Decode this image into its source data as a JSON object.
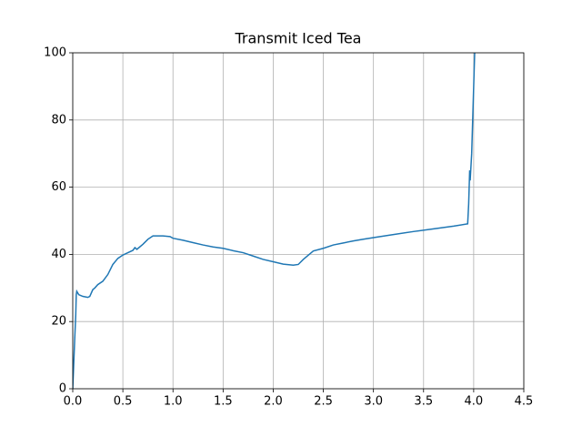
{
  "chart_data": {
    "type": "line",
    "title": "Transmit Iced Tea",
    "series": [
      {
        "name": null,
        "color": "#1f77b4",
        "x": [
          0,
          0.02,
          0.03,
          0.035,
          0.04,
          0.06,
          0.1,
          0.15,
          0.17,
          0.2,
          0.22,
          0.25,
          0.3,
          0.35,
          0.4,
          0.45,
          0.5,
          0.55,
          0.6,
          0.62,
          0.64,
          0.7,
          0.75,
          0.8,
          0.9,
          0.97,
          1.0,
          1.1,
          1.2,
          1.3,
          1.4,
          1.5,
          1.6,
          1.7,
          1.8,
          1.9,
          2.0,
          2.1,
          2.2,
          2.25,
          2.3,
          2.4,
          2.5,
          2.6,
          2.7,
          2.8,
          2.9,
          3.0,
          3.2,
          3.4,
          3.6,
          3.8,
          3.94,
          3.95,
          3.96,
          3.965,
          3.98,
          4.0,
          4.01
        ],
        "values": [
          0,
          15,
          22,
          28,
          29,
          28,
          27.5,
          27.2,
          27.5,
          29.5,
          30,
          31,
          32,
          34,
          37,
          38.8,
          39.8,
          40.5,
          41.2,
          42,
          41.5,
          43,
          44.5,
          45.5,
          45.5,
          45.3,
          44.8,
          44.2,
          43.5,
          42.8,
          42.2,
          41.8,
          41.1,
          40.5,
          39.5,
          38.5,
          37.8,
          37.1,
          36.8,
          37,
          38.5,
          41,
          41.8,
          42.8,
          43.4,
          44,
          44.5,
          45,
          45.9,
          46.8,
          47.6,
          48.4,
          49.1,
          55,
          65,
          62,
          70,
          90,
          100
        ]
      }
    ],
    "xlim": [
      0,
      4.5
    ],
    "ylim": [
      0,
      100
    ],
    "xticks": [
      {
        "value": 0,
        "label": "0.0"
      },
      0.5,
      {
        "value": 1,
        "label": "1.0"
      },
      1.5,
      {
        "value": 2,
        "label": "2.0"
      },
      2.5,
      {
        "value": 3,
        "label": "3.0"
      },
      3.5,
      {
        "value": 4,
        "label": "4.0"
      },
      4.5
    ],
    "yticks": [
      0,
      20,
      40,
      60,
      80,
      100
    ],
    "grid": true
  }
}
